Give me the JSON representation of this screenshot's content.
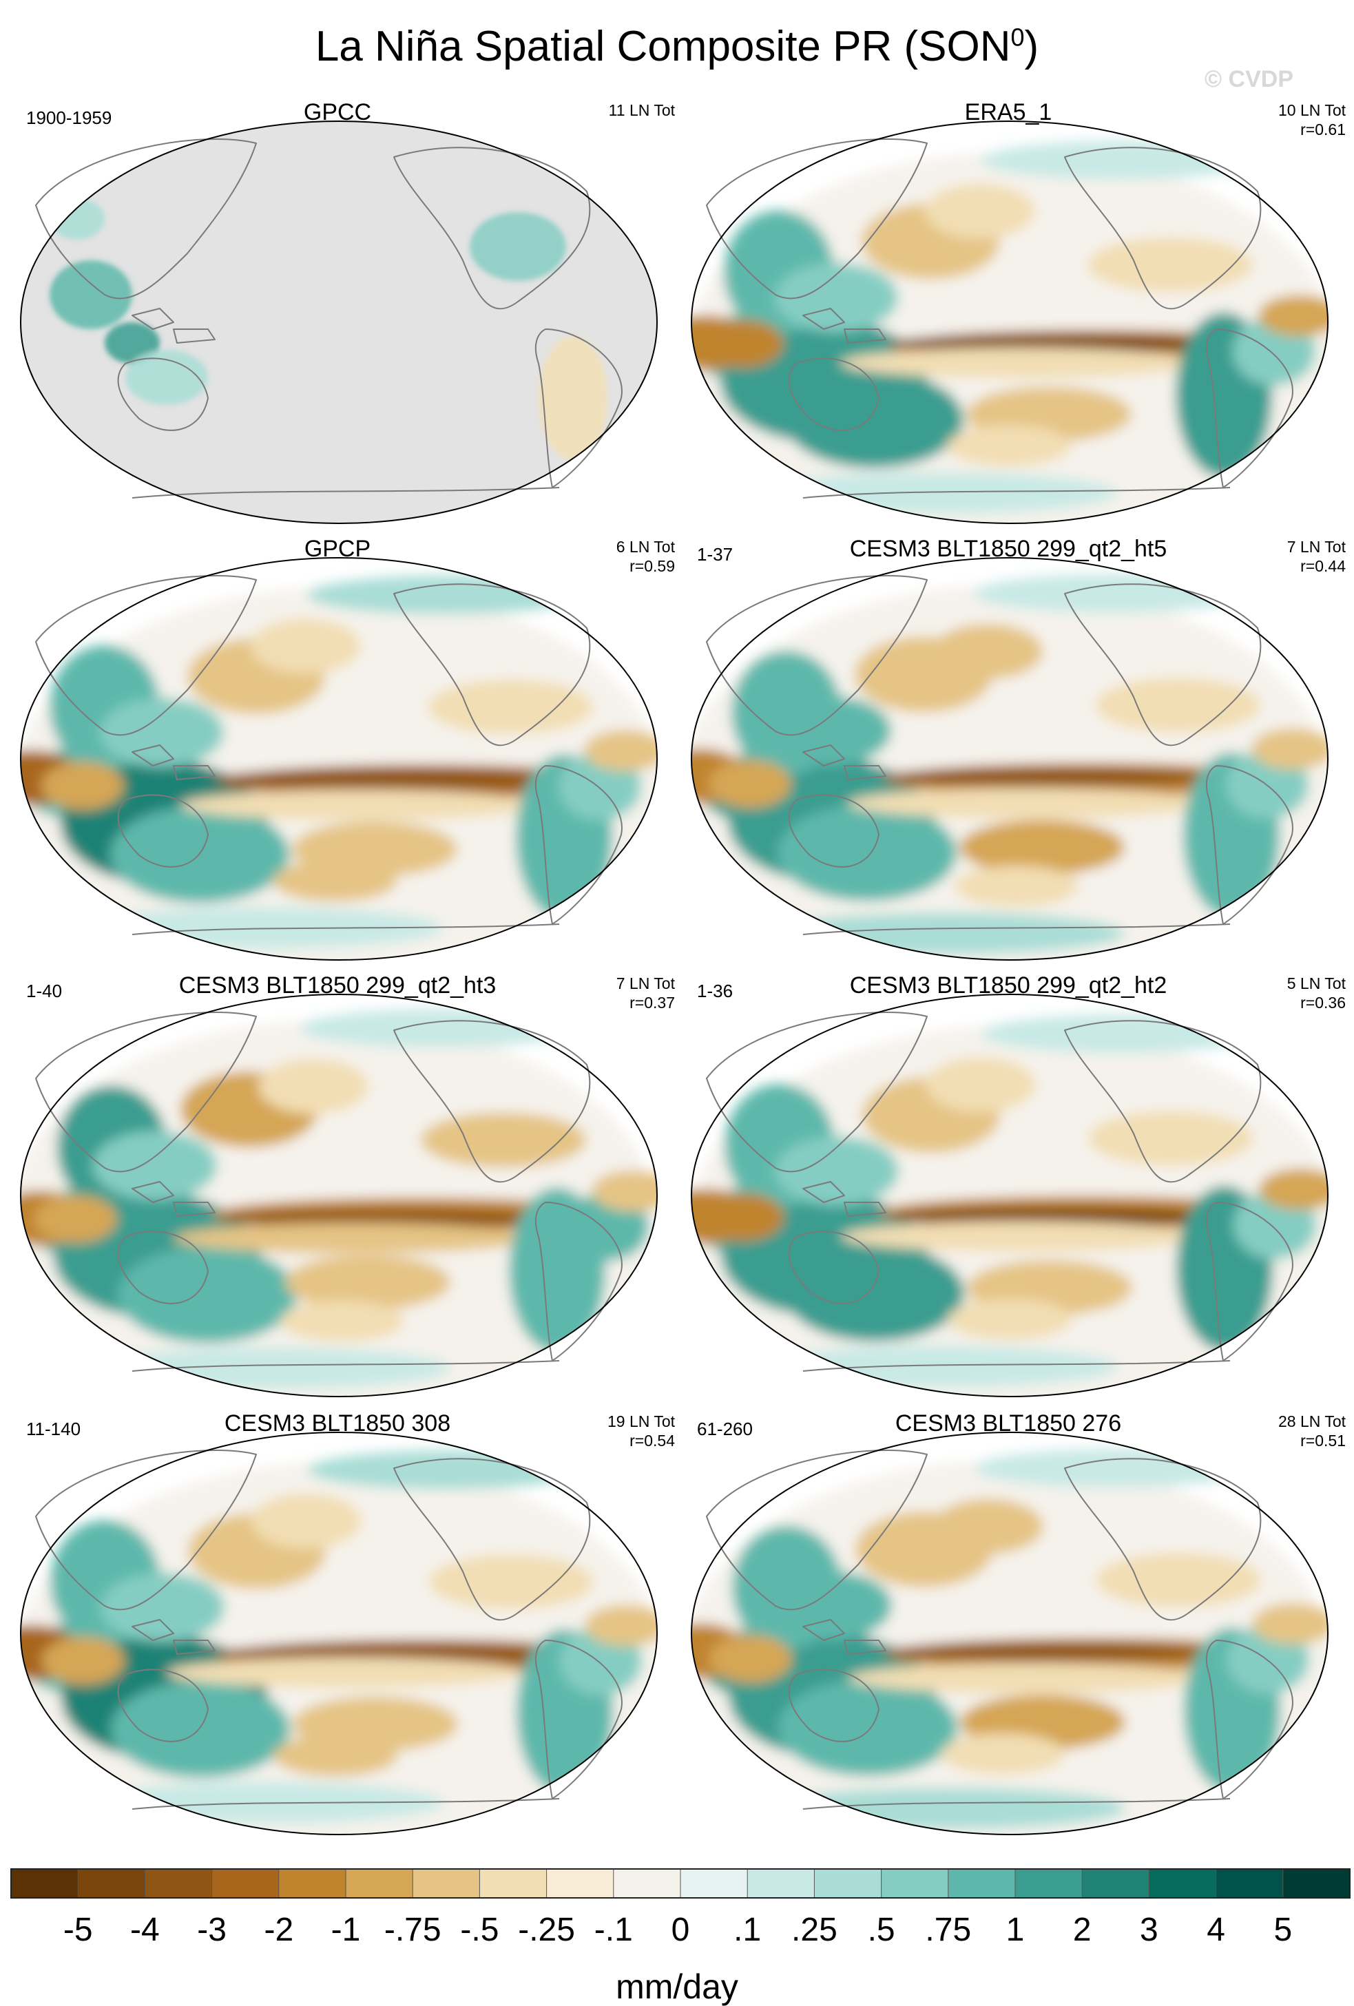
{
  "title": {
    "main": "La Niña Spatial Composite PR (SON",
    "superscript": "0",
    "close": ")"
  },
  "watermark": "© CVDP",
  "colors": {
    "land_mask": "#e3e3e3",
    "coast": "#7a7a7a",
    "scale": [
      "#5a3206",
      "#7a450b",
      "#8f5512",
      "#a8661c",
      "#c0842f",
      "#d5a654",
      "#e5c485",
      "#f2deb4",
      "#f8ecd6",
      "#f5f2ec",
      "#e6f3f2",
      "#c8e9e5",
      "#a9ddd6",
      "#85cdc2",
      "#5db8ab",
      "#3b9d90",
      "#1f8274",
      "#066a5c",
      "#00524a",
      "#003c33"
    ]
  },
  "colorbar": {
    "tick_labels": [
      "-5",
      "-4",
      "-3",
      "-2",
      "-1",
      "-.75",
      "-.5",
      "-.25",
      "-.1",
      "0",
      ".1",
      ".25",
      ".5",
      ".75",
      "1",
      "2",
      "3",
      "4",
      "5"
    ],
    "units": "mm/day"
  },
  "panels": [
    {
      "name": "GPCC",
      "period": "1900-1959",
      "events": "11 LN Tot",
      "corr": "",
      "masked": true
    },
    {
      "name": "ERA5_1",
      "period": "",
      "events": "10 LN Tot",
      "corr": "r=0.61",
      "masked": false
    },
    {
      "name": "GPCP",
      "period": "",
      "events": "6 LN Tot",
      "corr": "r=0.59",
      "masked": false
    },
    {
      "name": "CESM3 BLT1850 299_qt2_ht5",
      "period": "1-37",
      "events": "7 LN Tot",
      "corr": "r=0.44",
      "masked": false
    },
    {
      "name": "CESM3 BLT1850 299_qt2_ht3",
      "period": "1-40",
      "events": "7 LN Tot",
      "corr": "r=0.37",
      "masked": false
    },
    {
      "name": "CESM3 BLT1850 299_qt2_ht2",
      "period": "1-36",
      "events": "5 LN Tot",
      "corr": "r=0.36",
      "masked": false
    },
    {
      "name": "CESM3 BLT1850 308",
      "period": "11-140",
      "events": "19 LN Tot",
      "corr": "r=0.54",
      "masked": false
    },
    {
      "name": "CESM3 BLT1850 276",
      "period": "61-260",
      "events": "28 LN Tot",
      "corr": "r=0.51",
      "masked": false
    }
  ]
}
